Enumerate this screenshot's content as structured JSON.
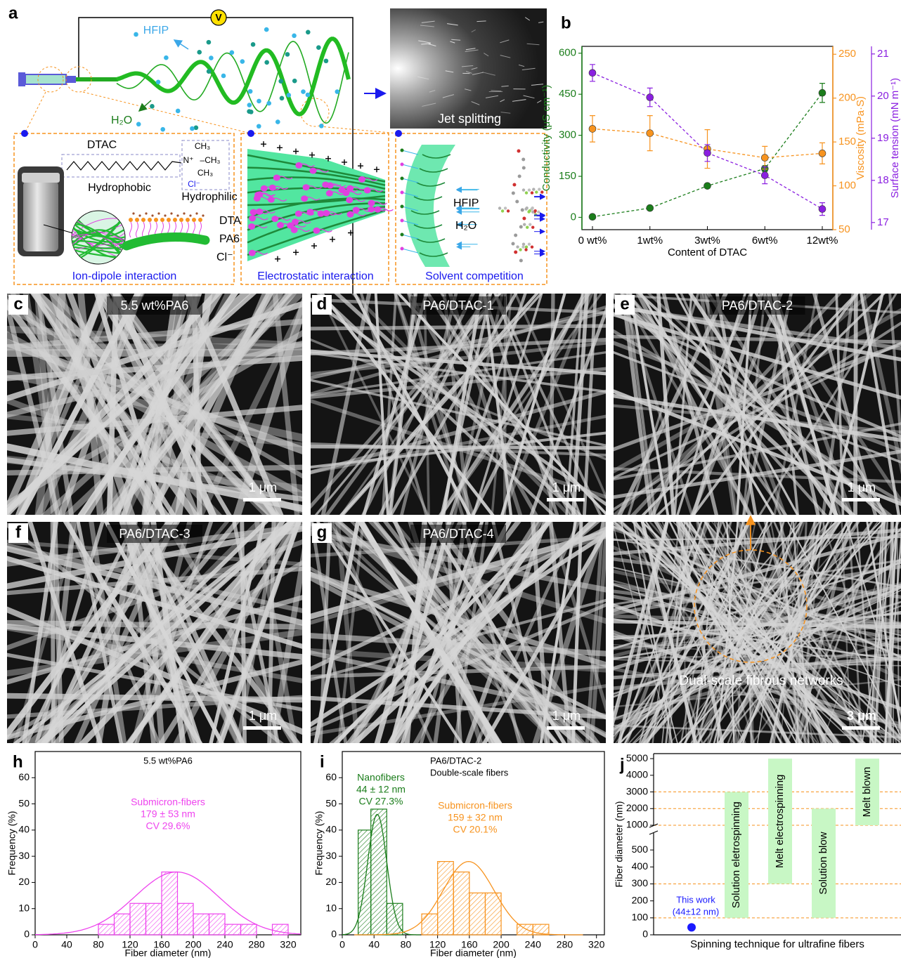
{
  "panel_a": {
    "label": "a",
    "voltage": "V",
    "hfip": "HFIP",
    "water": "H₂O",
    "jet": "Jet splitting",
    "box1": {
      "molecule": "DTAC",
      "hydrophobic": "Hydrophobic",
      "hydrophilic": "Hydrophilic",
      "groups": [
        "CH₃",
        "N⁺",
        "–CH₃",
        "CH₃",
        "Cl⁻"
      ],
      "legend": [
        "DTA",
        "PA6",
        "Cl⁻"
      ],
      "caption": "Ion-dipole interaction"
    },
    "box2": {
      "caption": "Electrostatic interaction"
    },
    "box3": {
      "solvents": [
        "HFIP",
        "H₂O"
      ],
      "caption": "Solvent competition"
    }
  },
  "micrographs": [
    {
      "label": "c",
      "title": "5.5 wt%PA6",
      "scale": "1 μm"
    },
    {
      "label": "d",
      "title": "PA6/DTAC-1",
      "scale": "1 μm"
    },
    {
      "label": "e",
      "title": "PA6/DTAC-2",
      "scale": "1 μm"
    },
    {
      "label": "f",
      "title": "PA6/DTAC-3",
      "scale": "1 μm"
    },
    {
      "label": "g",
      "title": "PA6/DTAC-4",
      "scale": "1 μm"
    },
    {
      "caption": "Dual-scale fibrous networks",
      "scale": "3 μm"
    }
  ],
  "chart_data": [
    {
      "type": "line",
      "label": "b",
      "xlabel": "Content of DTAC",
      "categories": [
        "0 wt%",
        "1wt%",
        "3wt%",
        "6wt%",
        "12wt%"
      ],
      "line_style": "dashed",
      "series": [
        {
          "name": "Conductivity (μS cm⁻¹)",
          "color": "#1b7d1b",
          "values": [
            2,
            34,
            115,
            178,
            455
          ],
          "errors": [
            0,
            0,
            0,
            10,
            35
          ]
        },
        {
          "name": "Viscosity (mPa·S)",
          "color": "#f7931e",
          "axis": "y2",
          "values": [
            165,
            160,
            142,
            132,
            137
          ],
          "errors": [
            15,
            20,
            22,
            13,
            12
          ]
        },
        {
          "name": "Surface tension (mN m⁻¹)",
          "color": "#8a1fe0",
          "axis": "y3",
          "values": [
            20.55,
            19.97,
            18.65,
            18.12,
            17.32
          ],
          "errors": [
            0.2,
            0.22,
            0.2,
            0.2,
            0.15
          ]
        }
      ],
      "ylim": [
        -45,
        625
      ],
      "yticks": [
        0,
        150,
        300,
        450,
        600
      ],
      "y2lim": [
        50,
        259
      ],
      "y2ticks": [
        50,
        100,
        150,
        200,
        250
      ],
      "y3lim": [
        16.83,
        21.18
      ],
      "y3ticks": [
        17,
        18,
        19,
        20,
        21
      ]
    },
    {
      "type": "histogram",
      "label": "h",
      "title": "5.5 wt%PA6",
      "xlabel": "Fiber diameter (nm)",
      "ylabel": "Frequency (%)",
      "xlim": [
        0,
        336
      ],
      "xticks": [
        0,
        40,
        80,
        120,
        160,
        200,
        240,
        280,
        320
      ],
      "ylim": [
        0,
        70
      ],
      "yticks": [
        0,
        10,
        20,
        30,
        40,
        50,
        60
      ],
      "series": [
        {
          "name": "Submicron-fibers",
          "color": "#ee44ee",
          "bins": [
            80,
            100,
            120,
            140,
            160,
            180,
            200,
            220,
            240,
            260,
            280,
            300,
            320
          ],
          "counts": [
            4,
            8,
            12,
            12,
            24,
            12,
            8,
            8,
            4,
            4,
            0,
            4
          ],
          "annotation": [
            "179 ± 53 nm",
            "CV 29.6%"
          ],
          "fit": {
            "mean": 179,
            "sd": 53,
            "peak": 24
          }
        }
      ]
    },
    {
      "type": "histogram",
      "label": "i",
      "title": "PA6/DTAC-2",
      "subtitle": "Double-scale fibers",
      "xlabel": "Fiber diameter (nm)",
      "ylabel": "Frequency (%)",
      "xlim": [
        0,
        330
      ],
      "xticks": [
        0,
        40,
        80,
        120,
        160,
        200,
        240,
        280,
        320
      ],
      "ylim": [
        0,
        70
      ],
      "yticks": [
        0,
        10,
        20,
        30,
        40,
        50,
        60
      ],
      "series": [
        {
          "name": "Nanofibers",
          "color": "#1b7d1b",
          "bins": [
            20,
            36,
            56,
            76
          ],
          "counts": [
            40,
            48,
            12
          ],
          "annotation": [
            "44 ± 12 nm",
            "CV 27.3%"
          ],
          "fit": {
            "mean": 44,
            "sd": 12,
            "peak": 46
          }
        },
        {
          "name": "Submicron-fibers",
          "color": "#f7931e",
          "bins": [
            100,
            120,
            140,
            160,
            180,
            200,
            220,
            240,
            260
          ],
          "counts": [
            8,
            28,
            24,
            16,
            16,
            0,
            4,
            4
          ],
          "annotation": [
            "159 ± 32 nm",
            "CV 20.1%"
          ],
          "fit": {
            "mean": 159,
            "sd": 32,
            "peak": 28
          }
        }
      ]
    },
    {
      "type": "range",
      "label": "j",
      "ylabel": "Fiber diameter (nm)",
      "xlabel": "Spinning technique for ultrafine fibers",
      "ylim": [
        0,
        600
      ],
      "yticks": [
        0,
        100,
        200,
        300,
        400,
        500
      ],
      "upper_ylim": [
        1000,
        5300
      ],
      "upper_yticks": [
        1000,
        2000,
        3000,
        4000,
        5000
      ],
      "bar_color": "#c8f7c5",
      "ref_lines": [
        100,
        300,
        1000,
        2000,
        3000
      ],
      "ref_color": "#f7931e",
      "series": [
        {
          "name": "Solution eletrospinning",
          "low": 100,
          "high": 3000
        },
        {
          "name": "Melt electrospinning",
          "low": 300,
          "high": 5000
        },
        {
          "name": "Solution blow",
          "low": 100,
          "high": 2000
        },
        {
          "name": "Melt blown",
          "low": 1000,
          "high": 5000
        }
      ],
      "point": {
        "value": 44,
        "label": "This work",
        "sublabel": "(44±12 nm)",
        "color": "#1a1aff"
      }
    }
  ]
}
